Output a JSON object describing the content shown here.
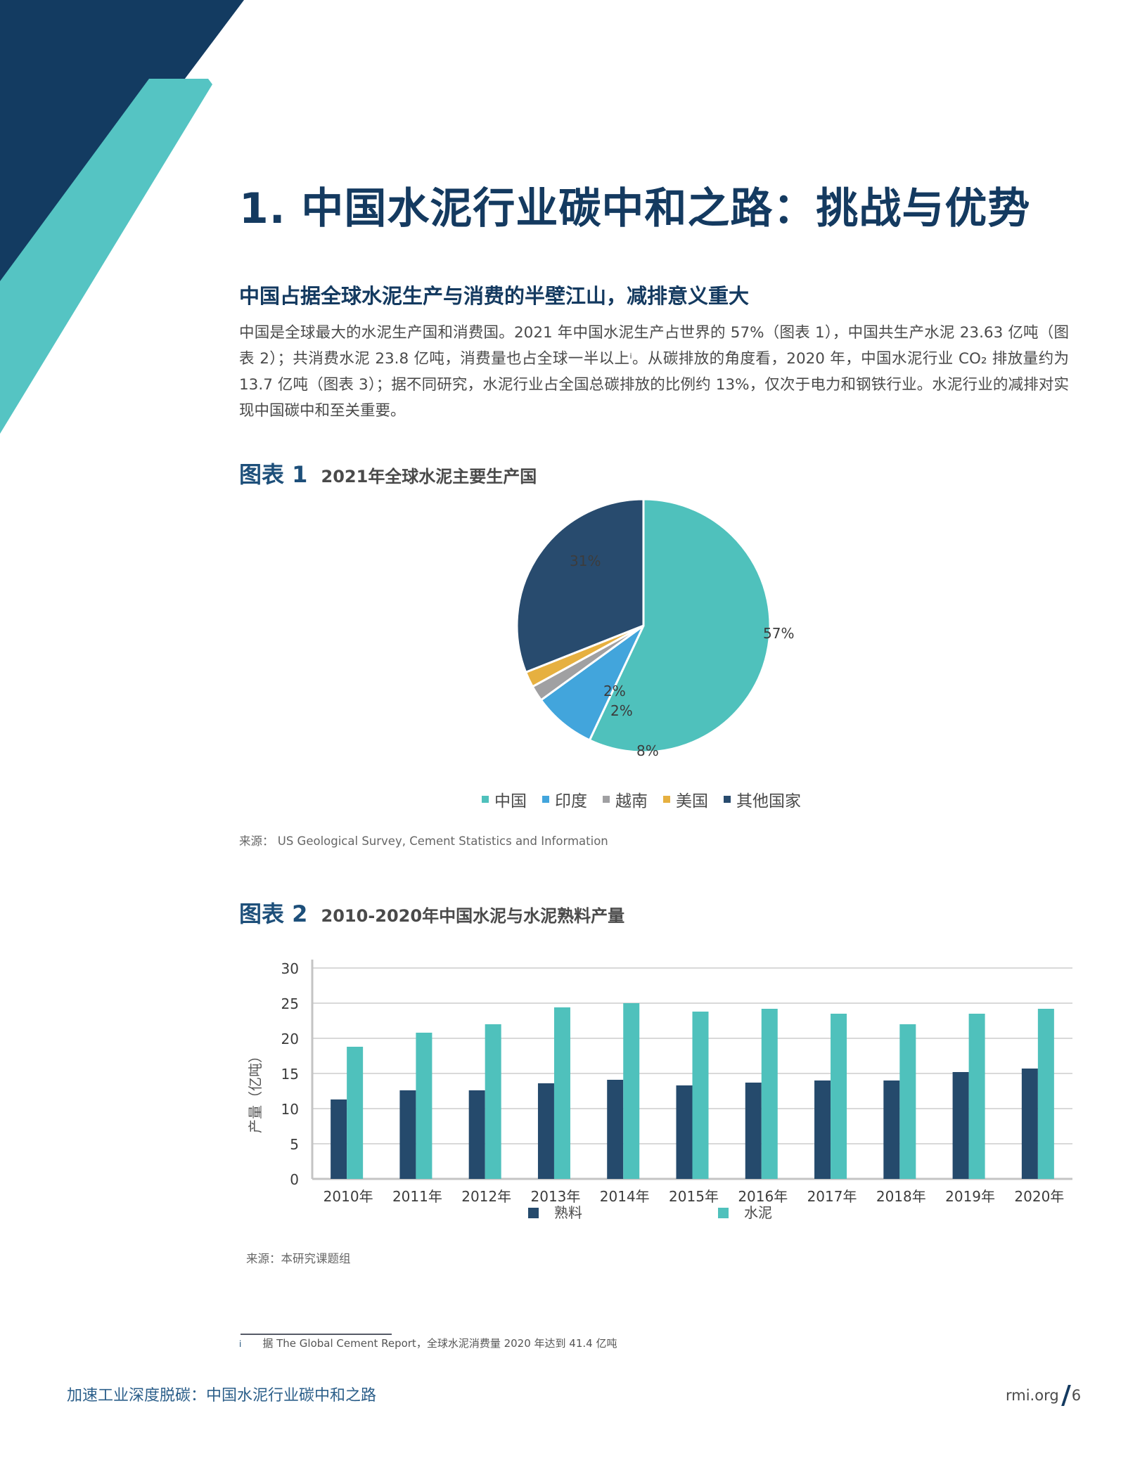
{
  "header": {
    "section_title": "1.  中国水泥行业碳中和之路：挑战与优势",
    "subheading": "中国占据全球水泥生产与消费的半壁江山，减排意义重大"
  },
  "body": {
    "paragraph_part1": "中国是全球最大的水泥生产国和消费国。2021 年中国水泥生产占世界的 57%（图表 1），中国共生产水泥 23.63 亿吨（图表 2）；共消费水泥 23.8 亿吨，消费量也占全球一半以上",
    "footnote_ref": "i",
    "paragraph_part2": "。从碳排放的角度看，2020 年，中国水泥行业 CO₂ 排放量约为 13.7 亿吨（图表 3）；据不同研究，水泥行业占全国总碳排放的比例约 13%，仅次于电力和钢铁行业。水泥行业的减排对实现中国碳中和至关重要。"
  },
  "figure1": {
    "number_label": "图表 1",
    "title": "2021年全球水泥主要生产国",
    "source": "来源： US Geological Survey, Cement Statistics and Information"
  },
  "figure2": {
    "number_label": "图表 2",
    "title": "2010-2020年中国水泥与水泥熟料产量",
    "source": "来源：本研究课题组"
  },
  "chart_data": [
    {
      "type": "pie",
      "title": "2021年全球水泥主要生产国",
      "categories": [
        "中国",
        "印度",
        "越南",
        "美国",
        "其他国家"
      ],
      "values": [
        57,
        8,
        2,
        2,
        31
      ],
      "labels": [
        "57%",
        "8%",
        "2%",
        "2%",
        "31%"
      ],
      "colors": [
        "#4fc1bc",
        "#42a5dc",
        "#a0a0a2",
        "#e6b040",
        "#284b6e"
      ],
      "legend_position": "bottom"
    },
    {
      "type": "bar",
      "title": "2010-2020年中国水泥与水泥熟料产量",
      "categories": [
        "2010年",
        "2011年",
        "2012年",
        "2013年",
        "2014年",
        "2015年",
        "2016年",
        "2017年",
        "2018年",
        "2019年",
        "2020年"
      ],
      "series": [
        {
          "name": "熟料",
          "color": "#254a6c",
          "values": [
            11.3,
            12.6,
            12.6,
            13.6,
            14.1,
            13.3,
            13.7,
            14.0,
            14.0,
            15.2,
            15.7
          ]
        },
        {
          "name": "水泥",
          "color": "#4fc1bc",
          "values": [
            18.8,
            20.8,
            22.0,
            24.4,
            25.0,
            23.8,
            24.2,
            23.5,
            22.0,
            23.5,
            24.2
          ]
        }
      ],
      "xlabel": "",
      "ylabel": "产量（亿吨）",
      "ylim": [
        0,
        30
      ],
      "yticks": [
        0,
        5,
        10,
        15,
        20,
        25,
        30
      ],
      "grid": true,
      "legend_position": "bottom"
    }
  ],
  "footnote": {
    "mark": "i",
    "text": "据 The Global Cement Report，全球水泥消费量 2020 年达到 41.4 亿吨"
  },
  "footer": {
    "report_title": "加速工业深度脱碳：中国水泥行业碳中和之路",
    "site": "rmi.org",
    "page_number": "6"
  }
}
